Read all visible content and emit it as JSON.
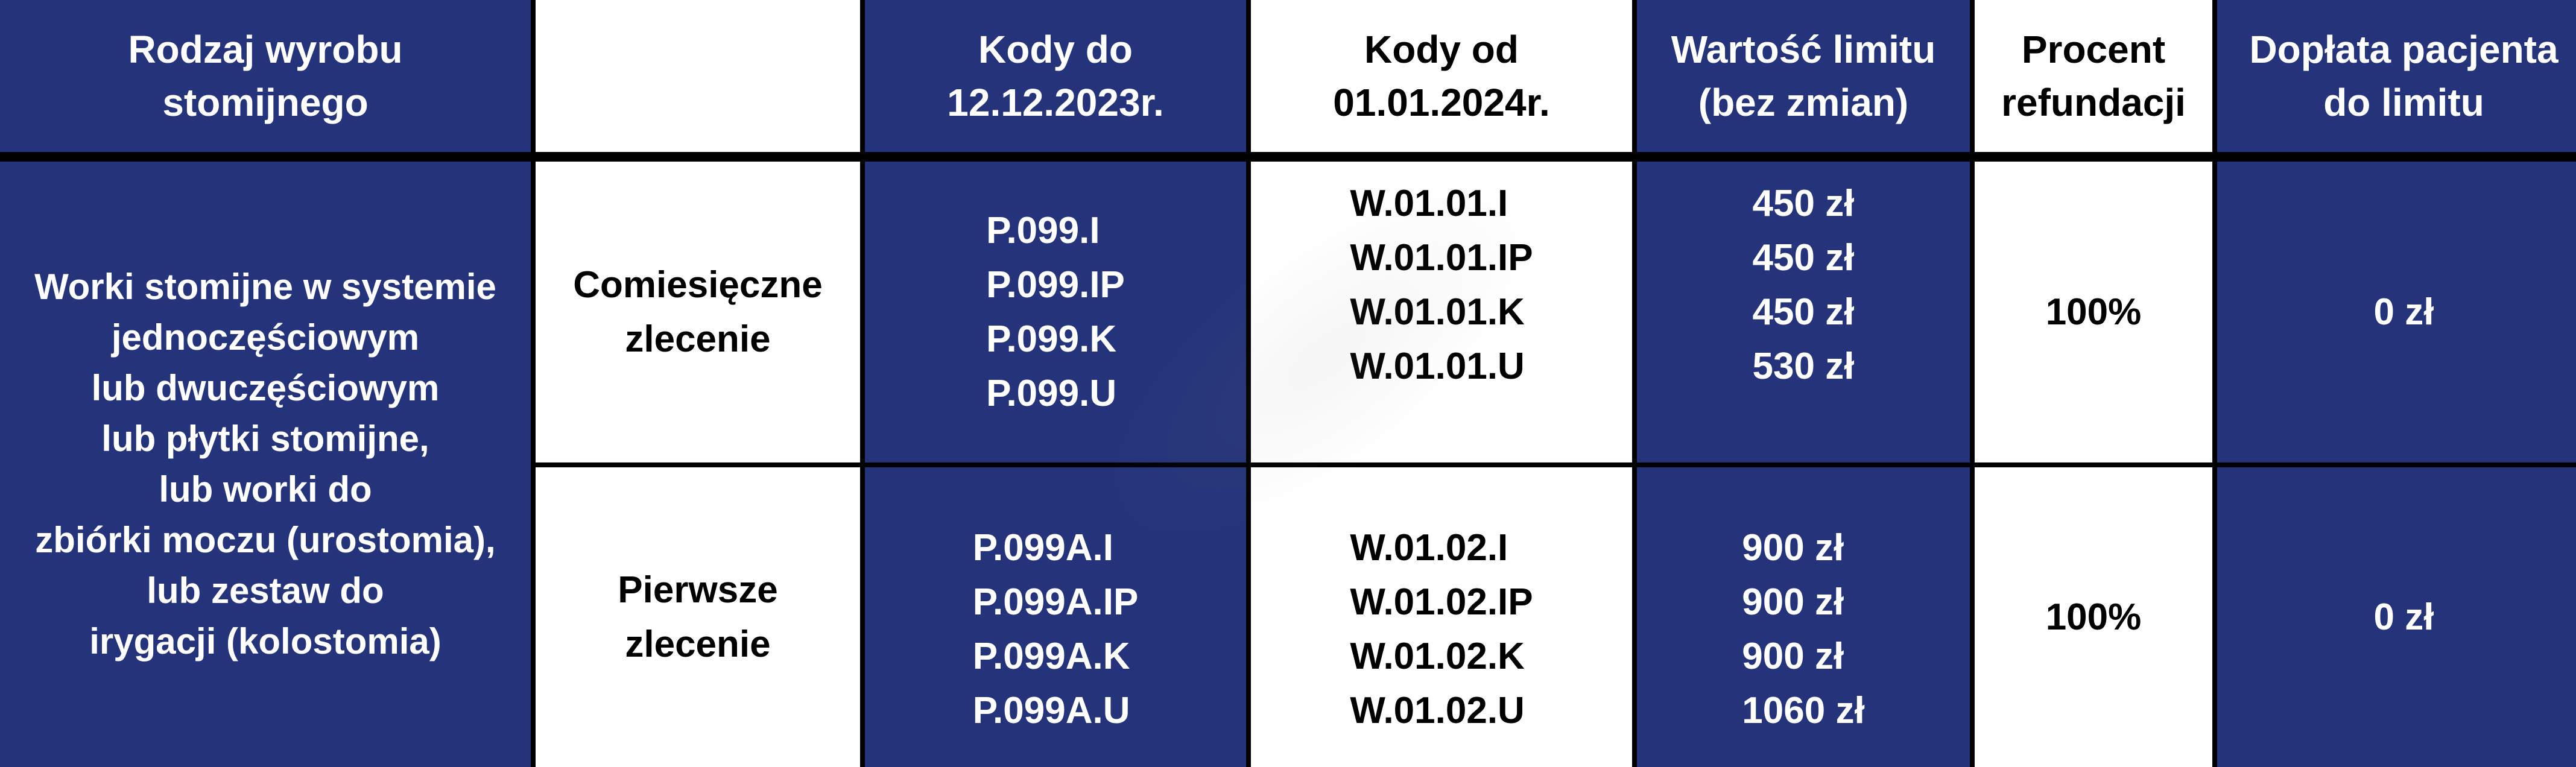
{
  "header": {
    "product_type": [
      "Rodzaj wyrobu",
      "stomijnego"
    ],
    "empty": "",
    "codes_until": [
      "Kody do",
      "12.12.2023r."
    ],
    "codes_from": [
      "Kody od",
      "01.01.2024r."
    ],
    "limit_value": [
      "Wartość limitu",
      "(bez zmian)"
    ],
    "refund_percent": [
      "Procent",
      "refundacji"
    ],
    "patient_copay": [
      "Dopłata pacjenta",
      "do limitu"
    ]
  },
  "product_type_text": [
    "Worki stomijne w systemie",
    "jednoczęściowym",
    "lub dwuczęściowym",
    "lub płytki stomijne,",
    "lub worki do",
    "zbiórki moczu (urostomia),",
    "lub zestaw do",
    "irygacji (kolostomia)"
  ],
  "rows": [
    {
      "order": [
        "Comiesięczne",
        "zlecenie"
      ],
      "codes_until": [
        "P.099.I",
        "P.099.IP",
        "P.099.K",
        "P.099.U"
      ],
      "codes_from": [
        "W.01.01.I",
        "W.01.01.IP",
        "W.01.01.K",
        "W.01.01.U"
      ],
      "limits": [
        "450 zł",
        "450 zł",
        "450 zł",
        "530 zł"
      ],
      "refund": "100%",
      "copay": "0 zł"
    },
    {
      "order": [
        "Pierwsze",
        "zlecenie"
      ],
      "codes_until": [
        "P.099A.I",
        "P.099A.IP",
        "P.099A.K",
        "P.099A.U"
      ],
      "codes_from": [
        "W.01.02.I",
        "W.01.02.IP",
        "W.01.02.K",
        "W.01.02.U"
      ],
      "limits": [
        "900 zł",
        "900 zł",
        "900 zł",
        "1060 zł"
      ],
      "refund": "100%",
      "copay": "0 zł"
    }
  ],
  "colors": {
    "blue": "#25347a",
    "white": "#ffffff",
    "border": "#000000"
  }
}
